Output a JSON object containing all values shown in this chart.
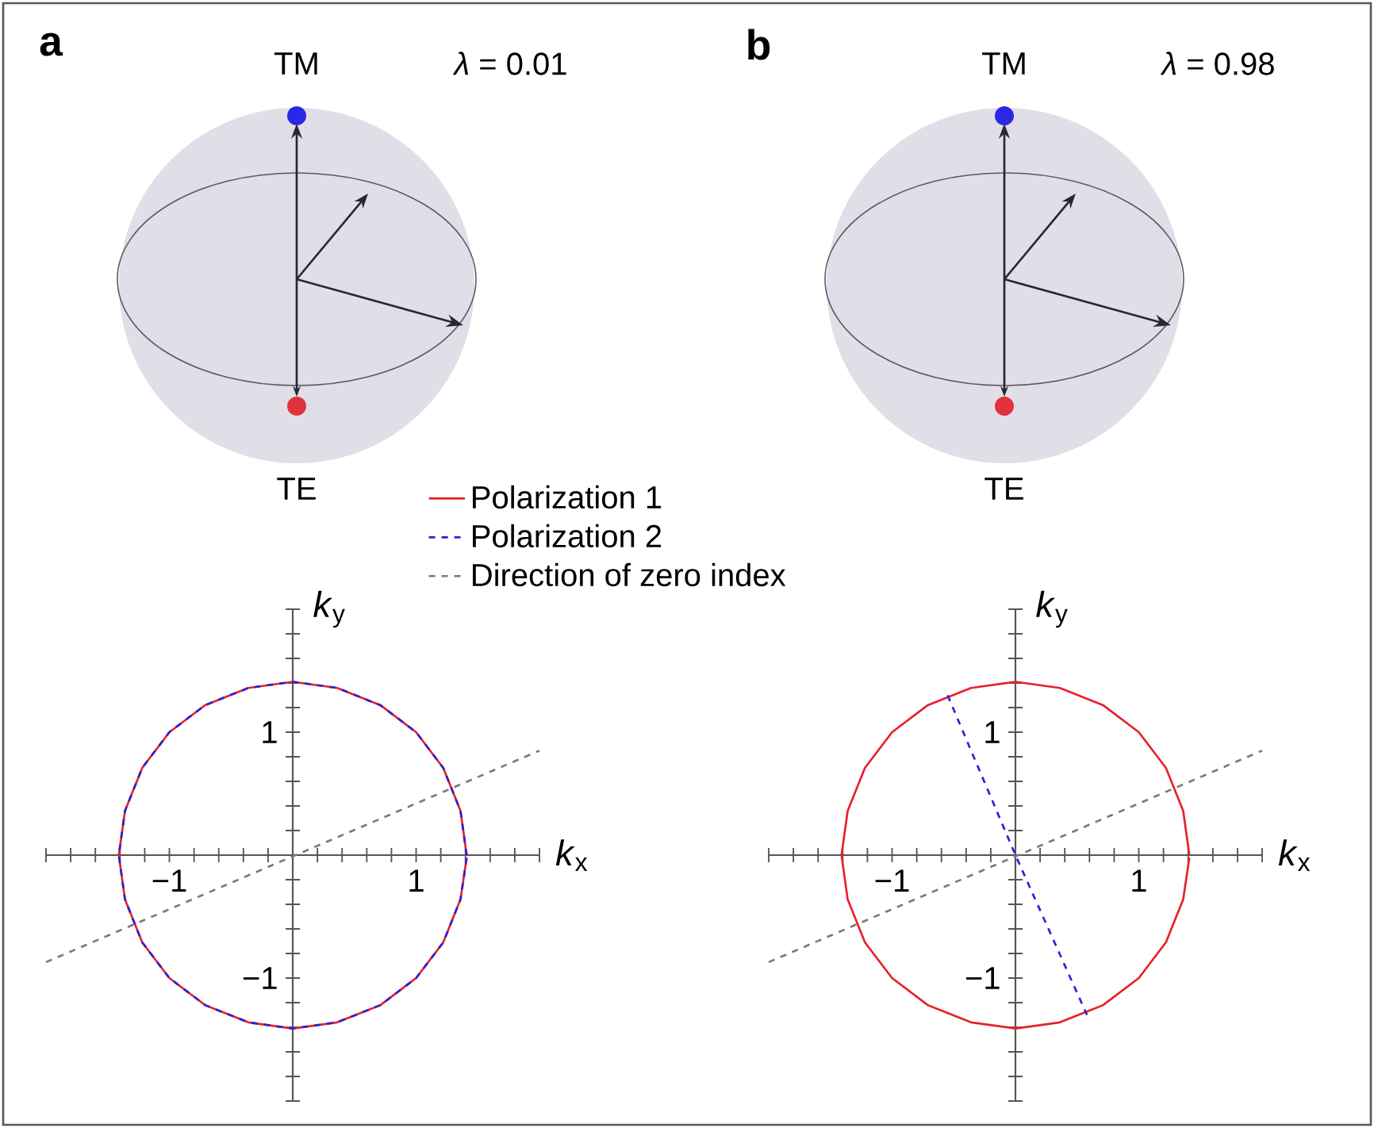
{
  "chart_data": [
    {
      "type": "line",
      "xlabel": "*k*$_{x}$",
      "ylabel": "*k*$_{y}$",
      "annotations": [
        "a",
        "TM",
        "TE",
        "*λ* = 0.01"
      ],
      "legend": "top right",
      "xlim": [
        -2,
        2
      ],
      "ylim": [
        -2,
        2
      ],
      "xticks": [
        {
          "value": -2,
          "label": null
        },
        {
          "value": -1.8,
          "label": null
        },
        {
          "value": -1.6,
          "label": null
        },
        {
          "value": -1.4,
          "label": null
        },
        {
          "value": -1.2,
          "label": null
        },
        {
          "value": -1,
          "label": "−1"
        },
        {
          "value": -0.8,
          "label": null
        },
        {
          "value": -0.6,
          "label": null
        },
        {
          "value": -0.4,
          "label": null
        },
        {
          "value": -0.2,
          "label": null
        },
        {
          "value": 0.2,
          "label": null
        },
        {
          "value": 0.4,
          "label": null
        },
        {
          "value": 0.6,
          "label": null
        },
        {
          "value": 0.8,
          "label": null
        },
        1,
        {
          "value": 1.2,
          "label": null
        },
        {
          "value": 1.4,
          "label": null
        },
        {
          "value": 1.6,
          "label": null
        },
        {
          "value": 1.8,
          "label": null
        },
        {
          "value": 2,
          "label": null
        }
      ],
      "yticks": [
        {
          "value": -2,
          "label": null
        },
        {
          "value": -1.8,
          "label": null
        },
        {
          "value": -1.6,
          "label": null
        },
        {
          "value": -1.4,
          "label": null
        },
        {
          "value": -1.2,
          "label": null
        },
        {
          "value": -1,
          "label": "−1"
        },
        {
          "value": -0.8,
          "label": null
        },
        {
          "value": -0.6,
          "label": null
        },
        {
          "value": -0.4,
          "label": null
        },
        {
          "value": -0.2,
          "label": null
        },
        {
          "value": 0.2,
          "label": null
        },
        {
          "value": 0.4,
          "label": null
        },
        {
          "value": 0.6,
          "label": null
        },
        {
          "value": 0.8,
          "label": null
        },
        1,
        {
          "value": 1.2,
          "label": null
        },
        {
          "value": 1.4,
          "label": null
        },
        {
          "value": 1.6,
          "label": null
        },
        {
          "value": 1.8,
          "label": null
        },
        {
          "value": 2,
          "label": null
        }
      ],
      "series": [
        {
          "name": "Polarization 1",
          "color": "#e8202a",
          "line_style": "solid",
          "x": [
            1.41,
            1.36,
            1.22,
            1.0,
            0.71,
            0.36,
            0,
            -0.36,
            -0.71,
            -1.0,
            -1.22,
            -1.36,
            -1.41,
            -1.36,
            -1.22,
            -1.0,
            -0.71,
            -0.36,
            0,
            0.36,
            0.71,
            1.0,
            1.22,
            1.36,
            1.41
          ],
          "values": [
            0,
            0.36,
            0.71,
            1.0,
            1.22,
            1.36,
            1.41,
            1.36,
            1.22,
            1.0,
            0.71,
            0.36,
            0,
            -0.36,
            -0.71,
            -1.0,
            -1.22,
            -1.36,
            -1.41,
            -1.36,
            -1.22,
            -1.0,
            -0.71,
            -0.36,
            -0.02
          ]
        },
        {
          "name": "Polarization 2",
          "color": "#2a22d8",
          "line_style": "dashed",
          "x": [
            1.41,
            1.36,
            1.22,
            1.0,
            0.71,
            0.36,
            0,
            -0.36,
            -0.71,
            -1.0,
            -1.22,
            -1.36,
            -1.41,
            -1.36,
            -1.22,
            -1.0,
            -0.71,
            -0.36,
            0,
            0.36,
            0.71,
            1.0,
            1.22,
            1.36,
            1.41
          ],
          "values": [
            0,
            0.36,
            0.71,
            1.0,
            1.22,
            1.36,
            1.41,
            1.36,
            1.22,
            1.0,
            0.71,
            0.36,
            0,
            -0.36,
            -0.71,
            -1.0,
            -1.22,
            -1.36,
            -1.41,
            -1.36,
            -1.22,
            -1.0,
            -0.71,
            -0.36,
            -0.02
          ]
        },
        {
          "name": "Direction of zero index",
          "color": "#7a7a7a",
          "line_style": "dashed",
          "x": [
            -2,
            2
          ],
          "values": [
            -0.87,
            0.85
          ]
        }
      ]
    },
    {
      "type": "line",
      "xlabel": "*k*$_{x}$",
      "ylabel": "*k*$_{y}$",
      "annotations": [
        "b",
        "TM",
        "TE",
        "*λ* = 0.98"
      ],
      "xlim": [
        -2,
        2
      ],
      "ylim": [
        -2,
        2
      ],
      "xticks": [
        {
          "value": -2,
          "label": null
        },
        {
          "value": -1.8,
          "label": null
        },
        {
          "value": -1.6,
          "label": null
        },
        {
          "value": -1.4,
          "label": null
        },
        {
          "value": -1.2,
          "label": null
        },
        {
          "value": -1,
          "label": "−1"
        },
        {
          "value": -0.8,
          "label": null
        },
        {
          "value": -0.6,
          "label": null
        },
        {
          "value": -0.4,
          "label": null
        },
        {
          "value": -0.2,
          "label": null
        },
        {
          "value": 0.2,
          "label": null
        },
        {
          "value": 0.4,
          "label": null
        },
        {
          "value": 0.6,
          "label": null
        },
        {
          "value": 0.8,
          "label": null
        },
        1,
        {
          "value": 1.2,
          "label": null
        },
        {
          "value": 1.4,
          "label": null
        },
        {
          "value": 1.6,
          "label": null
        },
        {
          "value": 1.8,
          "label": null
        },
        {
          "value": 2,
          "label": null
        }
      ],
      "yticks": [
        {
          "value": -2,
          "label": null
        },
        {
          "value": -1.8,
          "label": null
        },
        {
          "value": -1.6,
          "label": null
        },
        {
          "value": -1.4,
          "label": null
        },
        {
          "value": -1.2,
          "label": null
        },
        {
          "value": -1,
          "label": "−1"
        },
        {
          "value": -0.8,
          "label": null
        },
        {
          "value": -0.6,
          "label": null
        },
        {
          "value": -0.4,
          "label": null
        },
        {
          "value": -0.2,
          "label": null
        },
        {
          "value": 0.2,
          "label": null
        },
        {
          "value": 0.4,
          "label": null
        },
        {
          "value": 0.6,
          "label": null
        },
        {
          "value": 0.8,
          "label": null
        },
        1,
        {
          "value": 1.2,
          "label": null
        },
        {
          "value": 1.4,
          "label": null
        },
        {
          "value": 1.6,
          "label": null
        },
        {
          "value": 1.8,
          "label": null
        },
        {
          "value": 2,
          "label": null
        }
      ],
      "series": [
        {
          "color": "#e8202a",
          "line_style": "solid",
          "x": [
            1.41,
            1.36,
            1.22,
            1.0,
            0.71,
            0.36,
            0,
            -0.36,
            -0.71,
            -1.0,
            -1.22,
            -1.36,
            -1.41,
            -1.36,
            -1.22,
            -1.0,
            -0.71,
            -0.36,
            0,
            0.36,
            0.71,
            1.0,
            1.22,
            1.36,
            1.41
          ],
          "values": [
            0,
            0.36,
            0.71,
            1.0,
            1.22,
            1.36,
            1.41,
            1.36,
            1.22,
            1.0,
            0.71,
            0.36,
            0,
            -0.36,
            -0.71,
            -1.0,
            -1.22,
            -1.36,
            -1.41,
            -1.36,
            -1.22,
            -1.0,
            -0.71,
            -0.36,
            -0.02
          ]
        },
        {
          "color": "#2a22d8",
          "line_style": "dashed",
          "x": [
            -0.55,
            0,
            0.58
          ],
          "values": [
            1.3,
            0,
            -1.3
          ]
        },
        {
          "color": "#7a7a7a",
          "line_style": "dashed",
          "x": [
            -2,
            2
          ],
          "values": [
            -0.87,
            0.85
          ]
        }
      ]
    }
  ]
}
